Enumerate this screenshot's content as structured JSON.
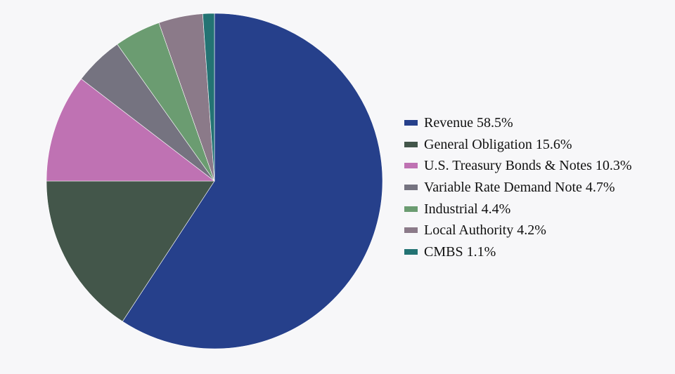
{
  "chart_data": {
    "type": "pie",
    "start_angle": "top",
    "direction": "clockwise",
    "legend_position": "right",
    "slices": [
      {
        "label": "Revenue",
        "value": 58.5,
        "value_label": "58.5%",
        "color": "#26408b"
      },
      {
        "label": "General Obligation",
        "value": 15.6,
        "value_label": "15.6%",
        "color": "#43564a"
      },
      {
        "label": "U.S. Treasury Bonds & Notes",
        "value": 10.3,
        "value_label": "10.3%",
        "color": "#bf72b3"
      },
      {
        "label": "Variable Rate Demand Note",
        "value": 4.7,
        "value_label": "4.7%",
        "color": "#757380"
      },
      {
        "label": "Industrial",
        "value": 4.4,
        "value_label": "4.4%",
        "color": "#6b9c71"
      },
      {
        "label": "Local Authority",
        "value": 4.2,
        "value_label": "4.2%",
        "color": "#8b7a89"
      },
      {
        "label": "CMBS",
        "value": 1.1,
        "value_label": "1.1%",
        "color": "#237373"
      }
    ]
  }
}
